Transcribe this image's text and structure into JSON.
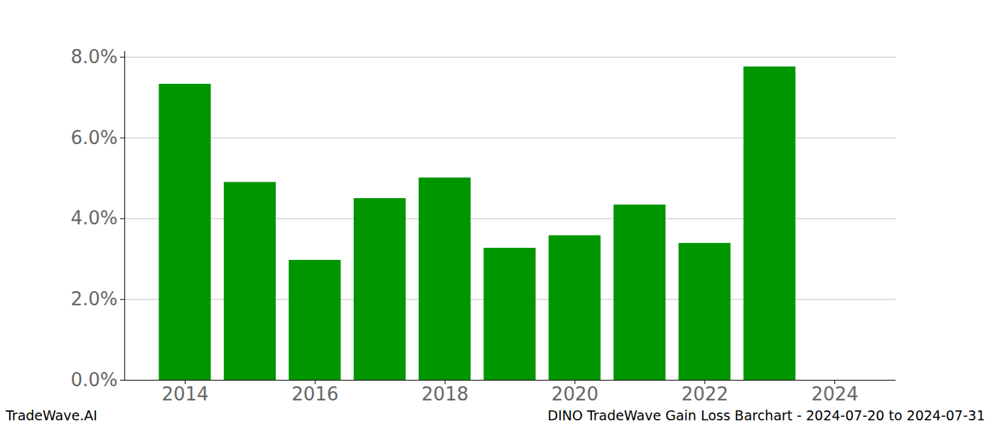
{
  "chart_data": {
    "type": "bar",
    "x": [
      2014,
      2015,
      2016,
      2017,
      2018,
      2019,
      2020,
      2021,
      2022,
      2023
    ],
    "values": [
      7.33,
      4.9,
      2.97,
      4.5,
      5.01,
      3.27,
      3.58,
      4.34,
      3.39,
      7.76
    ],
    "color": "#009600",
    "xlim": [
      2013.07,
      2024.94
    ],
    "xticks": [
      2014,
      2016,
      2018,
      2020,
      2022,
      2024
    ],
    "ylim": [
      0,
      8.14
    ],
    "yticks": [
      {
        "value": 0,
        "label": "0.0%"
      },
      {
        "value": 2,
        "label": "2.0%"
      },
      {
        "value": 4,
        "label": "4.0%"
      },
      {
        "value": 6,
        "label": "6.0%"
      },
      {
        "value": 8,
        "label": "8.0%"
      }
    ],
    "grid": true,
    "annotations": [
      "TradeWave.AI",
      "DINO TradeWave Gain Loss Barchart - 2024-07-20 to 2024-07-31"
    ]
  }
}
